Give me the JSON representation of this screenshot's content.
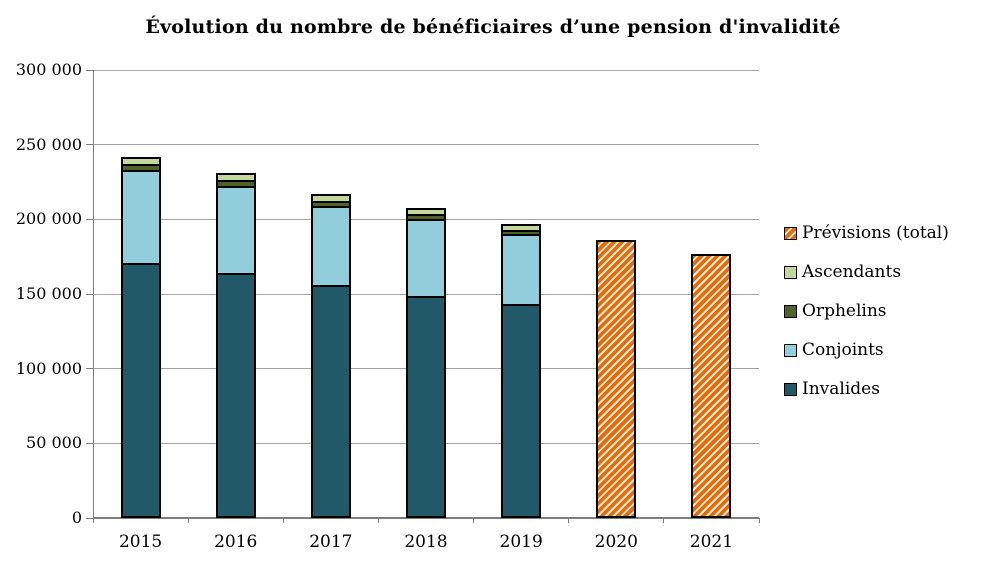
{
  "title": "Évolution du nombre de bénéficiaires d’une pension d'invalidité",
  "chart_data": {
    "type": "bar",
    "stacked": true,
    "title": "Évolution du nombre de bénéficiaires d’une pension d'invalidité",
    "categories": [
      "2015",
      "2016",
      "2017",
      "2018",
      "2019",
      "2020",
      "2021"
    ],
    "series": [
      {
        "name": "Invalides",
        "color": "#215968",
        "pattern": "solid",
        "values": [
          171000,
          164000,
          156000,
          149000,
          143000,
          null,
          null
        ]
      },
      {
        "name": "Conjoints",
        "color": "#92CDDC",
        "pattern": "solid",
        "values": [
          62000,
          58500,
          53000,
          51000,
          47000,
          null,
          null
        ]
      },
      {
        "name": "Orphelins",
        "color": "#4F6228",
        "pattern": "solid",
        "values": [
          3800,
          3600,
          3500,
          3300,
          3100,
          null,
          null
        ]
      },
      {
        "name": "Ascendants",
        "color": "#C3D69B",
        "pattern": "solid",
        "values": [
          5200,
          4900,
          4800,
          4200,
          3900,
          null,
          null
        ]
      },
      {
        "name": "Prévisions (total)",
        "color": "#E36C09",
        "pattern": "diagonal-hatch",
        "values": [
          null,
          null,
          null,
          null,
          null,
          186500,
          176500
        ]
      }
    ],
    "totals": [
      242000,
      231000,
      217300,
      207500,
      197000,
      186500,
      176500
    ],
    "legend": [
      "Prévisions (total)",
      "Ascendants",
      "Orphelins",
      "Conjoints",
      "Invalides"
    ],
    "legend_position": "right",
    "xlabel": "",
    "ylabel": "",
    "ylim": [
      0,
      300000
    ],
    "ytick_step": 50000,
    "ytick_labels": [
      "0",
      "50 000",
      "100 000",
      "150 000",
      "200 000",
      "250 000",
      "300 000"
    ],
    "grid": true,
    "colors": {
      "gridline": "#a3a3a3",
      "axis": "#7f7f7f",
      "bar_border": "#000000",
      "hatch_stripe": "#F7E7D3",
      "text": "#000000",
      "background": "#ffffff"
    }
  }
}
